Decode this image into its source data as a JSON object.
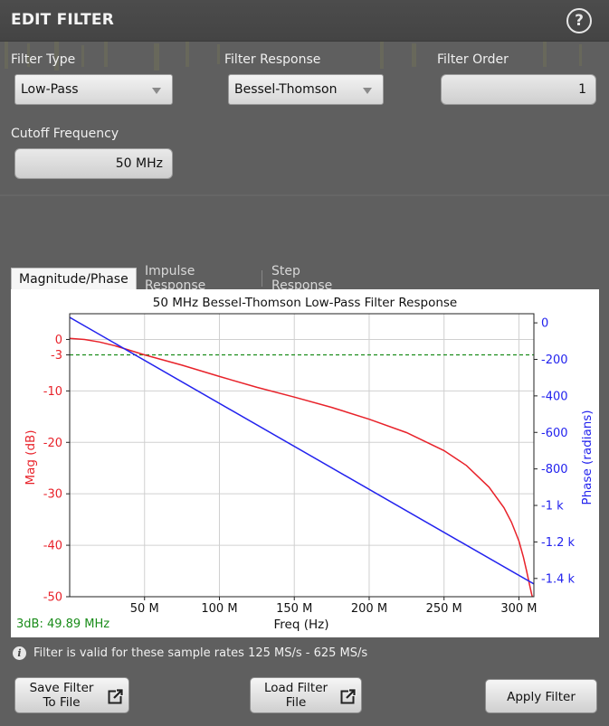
{
  "dialog": {
    "title": "EDIT FILTER",
    "help_icon": "help-circle-icon",
    "help_glyph": "?"
  },
  "fields": {
    "filter_type": {
      "label": "Filter Type",
      "value": "Low-Pass"
    },
    "filter_response": {
      "label": "Filter Response",
      "value": "Bessel-Thomson"
    },
    "filter_order": {
      "label": "Filter Order",
      "value": "1"
    },
    "cutoff_frequency": {
      "label": "Cutoff Frequency",
      "value": "50 MHz"
    }
  },
  "tabs": [
    {
      "label": "Magnitude/Phase",
      "active": true
    },
    {
      "label": "Impulse Response",
      "active": false
    },
    {
      "label": "Step Response",
      "active": false
    }
  ],
  "chart_data": {
    "type": "line",
    "title": "50 MHz Bessel-Thomson Low-Pass Filter Response",
    "xlabel": "Freq (Hz)",
    "ylabel_left": "Mag (dB)",
    "ylabel_right": "Phase (radians)",
    "xlim": [
      0,
      310
    ],
    "ylim_left": [
      -50,
      5
    ],
    "ylim_right": [
      -1500,
      50
    ],
    "x_ticks": [
      50,
      100,
      150,
      200,
      250,
      300
    ],
    "x_tick_labels": [
      "50 M",
      "100 M",
      "150 M",
      "200 M",
      "250 M",
      "300 M"
    ],
    "y_left_ticks": [
      0,
      -3,
      -10,
      -20,
      -30,
      -40,
      -50
    ],
    "y_left_tick_labels": [
      "0",
      "-3",
      "-10",
      "-20",
      "-30",
      "-40",
      "-50"
    ],
    "y_right_ticks": [
      0,
      -200,
      -400,
      -600,
      -800,
      -1000,
      -1200,
      -1400
    ],
    "y_right_tick_labels": [
      "0",
      "-200",
      "-400",
      "-600",
      "-800",
      "-1 k",
      "-1.2 k",
      "-1.4 k"
    ],
    "grid": true,
    "reference_line": {
      "y": -3,
      "axis": "left",
      "style": "dashed",
      "color": "#1a8c1a"
    },
    "annotation": "3dB: 49.89 MHz",
    "series": [
      {
        "axis": "left",
        "color": "#e8222a",
        "x": [
          0,
          10,
          20,
          30,
          40,
          50,
          75,
          100,
          125,
          150,
          175,
          200,
          225,
          250,
          265,
          280,
          290,
          295,
          300,
          303,
          305,
          307,
          308.5,
          310
        ],
        "y": [
          0.2,
          0,
          -0.5,
          -1.2,
          -2.1,
          -3,
          -5,
          -7.2,
          -9.3,
          -11.2,
          -13.2,
          -15.5,
          -18.1,
          -21.6,
          -24.5,
          -28.7,
          -32.7,
          -35.5,
          -39.2,
          -42.3,
          -44.8,
          -47.5,
          -49.5,
          -51
        ]
      },
      {
        "axis": "right",
        "color": "#2222ee",
        "x": [
          0,
          310
        ],
        "y": [
          30,
          -1430
        ]
      }
    ]
  },
  "info": {
    "icon": "info-icon",
    "glyph": "i",
    "text": "Filter is valid for these sample rates 125 MS/s - 625 MS/s"
  },
  "buttons": {
    "save": {
      "line1": "Save Filter",
      "line2": "To File",
      "icon": "external-link-icon"
    },
    "load": {
      "line1": "Load Filter",
      "line2": "File",
      "icon": "external-link-icon"
    },
    "apply": {
      "label": "Apply Filter"
    }
  }
}
